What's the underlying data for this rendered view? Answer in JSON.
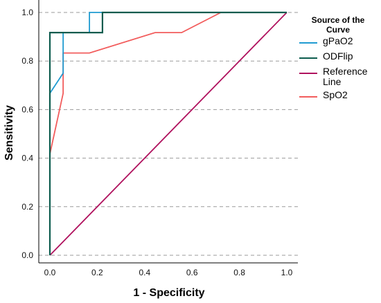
{
  "chart_data": {
    "type": "line",
    "title": "",
    "xlabel": "1 - Specificity",
    "ylabel": "Sensitivity",
    "xlim": [
      0,
      1
    ],
    "ylim": [
      0,
      1
    ],
    "x_ticks": [
      "0.0",
      "0.2",
      "0.4",
      "0.6",
      "0.8",
      "1.0"
    ],
    "y_ticks": [
      "0.0",
      "0.2",
      "0.4",
      "0.6",
      "0.8",
      "1.0"
    ],
    "grid": "horizontal dashed",
    "legend_title": "Source of the Curve",
    "legend_position": "right",
    "series": [
      {
        "name": "gPaO2",
        "color": "#1f9bd1",
        "points": [
          [
            0,
            0
          ],
          [
            0,
            0.667
          ],
          [
            0.056,
            0.75
          ],
          [
            0.056,
            0.917
          ],
          [
            0.167,
            0.917
          ],
          [
            0.167,
            1.0
          ],
          [
            1.0,
            1.0
          ]
        ]
      },
      {
        "name": "ODFlip",
        "color": "#0d5c4e",
        "points": [
          [
            0,
            0
          ],
          [
            0,
            0.917
          ],
          [
            0.222,
            0.917
          ],
          [
            0.222,
            1.0
          ],
          [
            1.0,
            1.0
          ]
        ]
      },
      {
        "name": "Reference Line",
        "color": "#b0125e",
        "points": [
          [
            0,
            0
          ],
          [
            1.0,
            1.0
          ]
        ]
      },
      {
        "name": "SpO2",
        "color": "#f25c5c",
        "points": [
          [
            0,
            0
          ],
          [
            0,
            0.417
          ],
          [
            0.056,
            0.667
          ],
          [
            0.056,
            0.833
          ],
          [
            0.167,
            0.833
          ],
          [
            0.444,
            0.917
          ],
          [
            0.556,
            0.917
          ],
          [
            0.722,
            1.0
          ],
          [
            1.0,
            1.0
          ]
        ]
      }
    ]
  }
}
